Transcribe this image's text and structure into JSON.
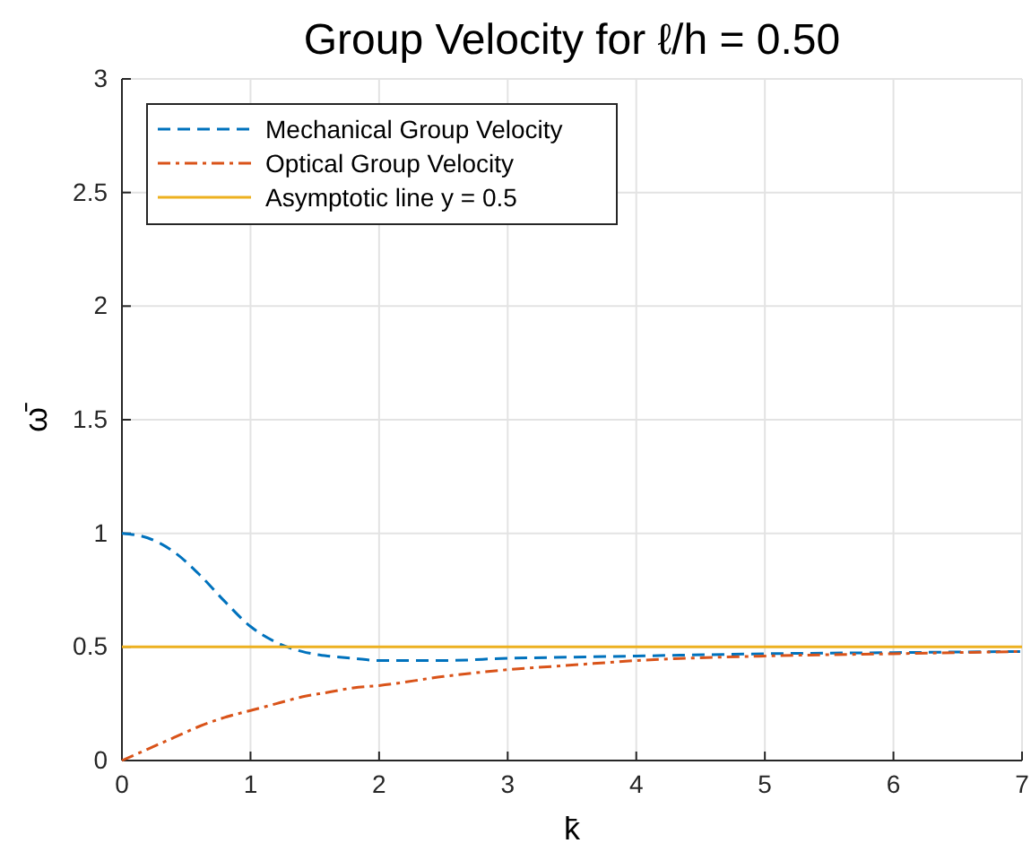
{
  "chart_data": {
    "type": "line",
    "title": "Group Velocity for ℓ/h = 0.50",
    "xlabel": "k̄",
    "ylabel": "ω̄",
    "x": [
      0,
      0.2,
      0.4,
      0.6,
      0.8,
      1.0,
      1.2,
      1.4,
      1.6,
      1.8,
      2.0,
      2.5,
      3,
      3.5,
      4,
      5,
      6,
      7
    ],
    "series": [
      {
        "name": "Mechanical Group Velocity",
        "color": "#0072bd",
        "line_style": "dashed",
        "values": [
          1,
          0.98,
          0.92,
          0.82,
          0.7,
          0.59,
          0.52,
          0.48,
          0.46,
          0.45,
          0.44,
          0.44,
          0.45,
          0.455,
          0.46,
          0.47,
          0.475,
          0.48
        ]
      },
      {
        "name": "Optical Group Velocity",
        "color": "#d95319",
        "line_style": "dashdot",
        "values": [
          0,
          0.05,
          0.1,
          0.15,
          0.19,
          0.22,
          0.25,
          0.28,
          0.3,
          0.32,
          0.33,
          0.37,
          0.4,
          0.42,
          0.44,
          0.46,
          0.47,
          0.48
        ]
      },
      {
        "name": "Asymptotic line y = 0.5",
        "color": "#edb120",
        "line_style": "solid",
        "x": [
          0,
          7
        ],
        "values": [
          0.5,
          0.5
        ]
      }
    ],
    "xlim": [
      0,
      7
    ],
    "xticks": [
      0,
      1,
      2,
      3,
      4,
      5,
      6,
      7
    ],
    "ylim": [
      0,
      3
    ],
    "yticks": [
      0,
      0.5,
      1,
      1.5,
      2,
      2.5,
      3
    ],
    "grid": true,
    "legend": "top left"
  }
}
